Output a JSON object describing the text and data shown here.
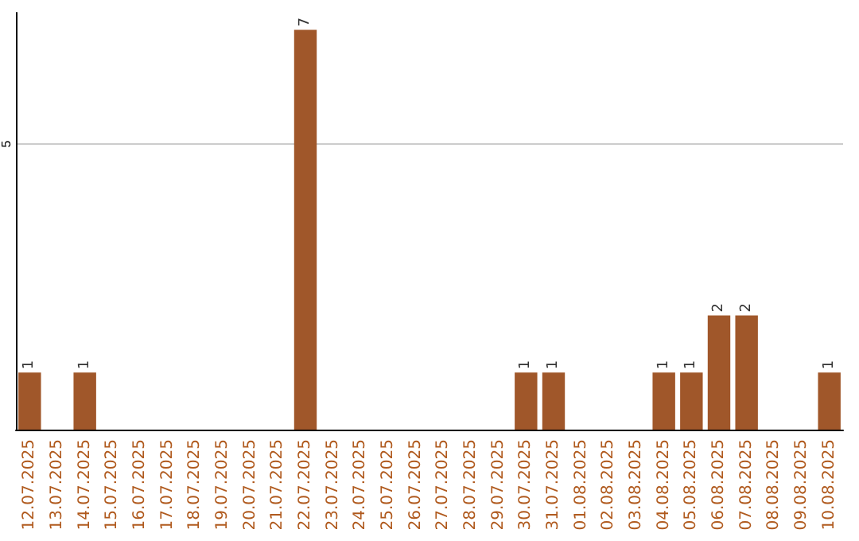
{
  "chart_data": {
    "type": "bar",
    "categories": [
      "12.07.2025",
      "13.07.2025",
      "14.07.2025",
      "15.07.2025",
      "16.07.2025",
      "17.07.2025",
      "18.07.2025",
      "19.07.2025",
      "20.07.2025",
      "21.07.2025",
      "22.07.2025",
      "23.07.2025",
      "24.07.2025",
      "25.07.2025",
      "26.07.2025",
      "27.07.2025",
      "28.07.2025",
      "29.07.2025",
      "30.07.2025",
      "31.07.2025",
      "01.08.2025",
      "02.08.2025",
      "03.08.2025",
      "04.08.2025",
      "05.08.2025",
      "06.08.2025",
      "07.08.2025",
      "08.08.2025",
      "09.08.2025",
      "10.08.2025"
    ],
    "values": [
      1,
      0,
      1,
      0,
      0,
      0,
      0,
      0,
      0,
      0,
      7,
      0,
      0,
      0,
      0,
      0,
      0,
      0,
      1,
      1,
      0,
      0,
      0,
      1,
      1,
      2,
      2,
      0,
      0,
      1
    ],
    "value_labels": [
      "1",
      null,
      "1",
      null,
      null,
      null,
      null,
      null,
      null,
      null,
      "7",
      null,
      null,
      null,
      null,
      null,
      null,
      null,
      "1",
      "1",
      null,
      null,
      null,
      "1",
      "1",
      "2",
      "2",
      null,
      null,
      "1"
    ],
    "color": "#a0572a",
    "ylim": [
      0,
      7.3
    ],
    "yticks": [
      5
    ],
    "grid": "y"
  }
}
